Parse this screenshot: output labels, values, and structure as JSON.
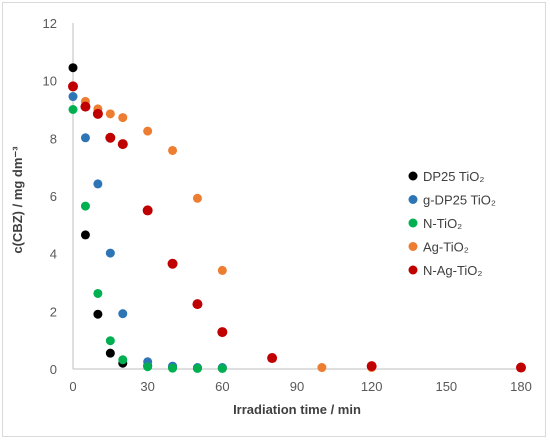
{
  "chart_data": {
    "type": "scatter",
    "xlabel": "Irradiation time / min",
    "ylabel": "c(CBZ) / mg dm⁻³",
    "xlim": [
      0,
      180
    ],
    "ylim": [
      0,
      12
    ],
    "xticks": [
      0,
      30,
      60,
      90,
      120,
      150,
      180
    ],
    "yticks": [
      0,
      2,
      4,
      6,
      8,
      10,
      12
    ],
    "grid": false,
    "legend_position": "right",
    "series": [
      {
        "name": "DP25 TiO₂",
        "color": "#000000",
        "x": [
          0,
          5,
          10,
          15,
          20,
          30,
          40,
          50,
          60
        ],
        "y": [
          10.45,
          4.65,
          1.9,
          0.55,
          0.2,
          0.1,
          0.05,
          0.03,
          0.03
        ]
      },
      {
        "name": "g-DP25 TiO₂",
        "color": "#2e75b6",
        "x": [
          0,
          5,
          10,
          15,
          20,
          30,
          40,
          50,
          60
        ],
        "y": [
          9.45,
          8.02,
          6.42,
          4.02,
          1.92,
          0.25,
          0.1,
          0.05,
          0.05
        ]
      },
      {
        "name": "N-TiO₂",
        "color": "#00b050",
        "x": [
          0,
          5,
          10,
          15,
          20,
          30,
          40,
          50,
          60
        ],
        "y": [
          9.0,
          5.65,
          2.62,
          0.98,
          0.32,
          0.08,
          0.03,
          0.02,
          0.02
        ]
      },
      {
        "name": "Ag-TiO₂",
        "color": "#ed7d31",
        "x": [
          0,
          5,
          10,
          15,
          20,
          30,
          40,
          50,
          60,
          100,
          120,
          180
        ],
        "y": [
          9.8,
          9.28,
          9.02,
          8.85,
          8.72,
          8.25,
          7.58,
          5.92,
          3.42,
          0.05,
          0.05,
          0.05
        ]
      },
      {
        "name": "N-Ag-TiO₂",
        "color": "#c00000",
        "x": [
          0,
          5,
          10,
          15,
          20,
          30,
          40,
          50,
          60,
          80,
          120,
          180
        ],
        "y": [
          9.8,
          9.1,
          8.85,
          8.02,
          7.8,
          5.5,
          3.65,
          2.25,
          1.28,
          0.38,
          0.1,
          0.05
        ]
      }
    ]
  }
}
